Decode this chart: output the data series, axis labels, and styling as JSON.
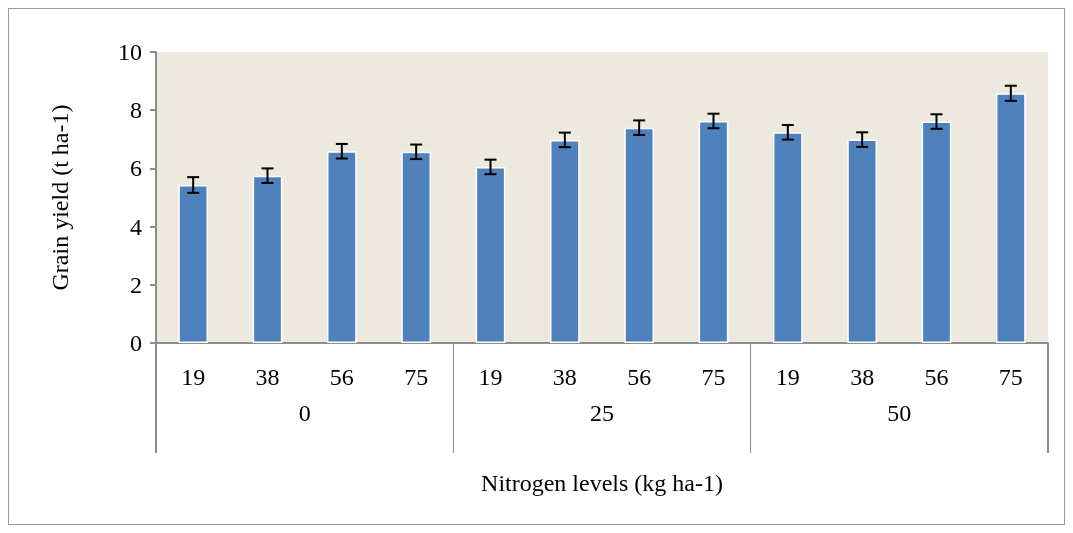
{
  "chart_data": {
    "type": "bar",
    "xlabel": "Nitrogen levels (kg ha-1)",
    "ylabel": "Grain yield (t ha-1)",
    "categories": [
      "19",
      "38",
      "56",
      "75",
      "19",
      "38",
      "56",
      "75",
      "19",
      "38",
      "56",
      "75"
    ],
    "annotations": [
      "0",
      "25",
      "50"
    ],
    "values": [
      5.43,
      5.75,
      6.59,
      6.57,
      6.05,
      6.98,
      7.4,
      7.63,
      7.24,
      6.99,
      7.61,
      8.58
    ],
    "errors": [
      0.27,
      0.25,
      0.25,
      0.25,
      0.25,
      0.25,
      0.25,
      0.25,
      0.25,
      0.25,
      0.25,
      0.26
    ],
    "color": "#4f81bd",
    "ylim": [
      0,
      10
    ],
    "yticks": [
      0,
      2,
      4,
      6,
      8,
      10
    ],
    "grid": false
  }
}
